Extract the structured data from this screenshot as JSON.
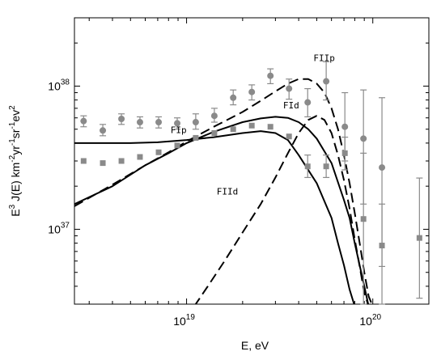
{
  "chart_data": {
    "type": "scatter",
    "x_scale": "log",
    "y_scale": "log",
    "xlim": [
      2.5e+18,
      2e+20
    ],
    "ylim": [
      3e+36,
      3e+38
    ],
    "xlabel": "E, eV",
    "ylabel": {
      "prefix": "E",
      "prefix_sup": "3",
      "body": " J(E) km",
      "km_sup": "-2",
      "yr": "yr",
      "yr_sup": "-1",
      "sr": "sr",
      "sr_sup": "-1",
      "ev": "ev",
      "ev_sup": "2"
    },
    "x_ticks": [
      {
        "value": 1e+19,
        "base": "10",
        "exp": "19"
      },
      {
        "value": 1e+20,
        "base": "10",
        "exp": "20"
      }
    ],
    "y_ticks": [
      {
        "value": 1e+37,
        "base": "10",
        "exp": "37"
      },
      {
        "value": 1e+38,
        "base": "10",
        "exp": "38"
      }
    ],
    "grid": false,
    "series": [
      {
        "marker": "circle",
        "color": "#8a8a8a",
        "points": [
          {
            "x": 2.8e+18,
            "y": 5.7e+37,
            "lo": 5.2e+37,
            "hi": 6.2e+37
          },
          {
            "x": 3.55e+18,
            "y": 4.9e+37,
            "lo": 4.5e+37,
            "hi": 5.4e+37
          },
          {
            "x": 4.47e+18,
            "y": 5.9e+37,
            "lo": 5.4e+37,
            "hi": 6.4e+37
          },
          {
            "x": 5.62e+18,
            "y": 5.6e+37,
            "lo": 5.1e+37,
            "hi": 6.1e+37
          },
          {
            "x": 7.08e+18,
            "y": 5.6e+37,
            "lo": 5.1e+37,
            "hi": 6.1e+37
          },
          {
            "x": 8.91e+18,
            "y": 5.5e+37,
            "lo": 5e+37,
            "hi": 6e+37
          },
          {
            "x": 1.12e+19,
            "y": 5.6e+37,
            "lo": 5e+37,
            "hi": 6.4e+37
          },
          {
            "x": 1.41e+19,
            "y": 6.2e+37,
            "lo": 5.6e+37,
            "hi": 7e+37
          },
          {
            "x": 1.78e+19,
            "y": 8.3e+37,
            "lo": 7.4e+37,
            "hi": 9.4e+37
          },
          {
            "x": 2.24e+19,
            "y": 9.1e+37,
            "lo": 8e+37,
            "hi": 1.02e+38
          },
          {
            "x": 2.82e+19,
            "y": 1.18e+38,
            "lo": 1.04e+38,
            "hi": 1.32e+38
          },
          {
            "x": 3.55e+19,
            "y": 9.6e+37,
            "lo": 8.1e+37,
            "hi": 1.12e+38
          },
          {
            "x": 4.47e+19,
            "y": 7.7e+37,
            "lo": 6.1e+37,
            "hi": 9.6e+37
          },
          {
            "x": 5.62e+19,
            "y": 1.08e+38,
            "lo": 8e+37,
            "hi": 1.48e+38
          },
          {
            "x": 7.08e+19,
            "y": 5.2e+37,
            "lo": 3e+37,
            "hi": 9e+37
          },
          {
            "x": 8.91e+19,
            "y": 4.3e+37,
            "lo": 1.5e+37,
            "hi": 9.4e+37
          },
          {
            "x": 1.12e+20,
            "y": 2.7e+37,
            "lo": 5.5e+36,
            "hi": 8.3e+37
          }
        ]
      },
      {
        "marker": "square",
        "color": "#8a8a8a",
        "points": [
          {
            "x": 2.8e+18,
            "y": 3e+37
          },
          {
            "x": 3.55e+18,
            "y": 2.9e+37
          },
          {
            "x": 4.47e+18,
            "y": 3e+37
          },
          {
            "x": 5.62e+18,
            "y": 3.2e+37
          },
          {
            "x": 7.08e+18,
            "y": 3.45e+37
          },
          {
            "x": 8.91e+18,
            "y": 3.85e+37
          },
          {
            "x": 1.12e+19,
            "y": 4.35e+37
          },
          {
            "x": 1.41e+19,
            "y": 4.7e+37
          },
          {
            "x": 1.78e+19,
            "y": 5e+37
          },
          {
            "x": 2.24e+19,
            "y": 5.3e+37
          },
          {
            "x": 2.82e+19,
            "y": 5.2e+37
          },
          {
            "x": 3.55e+19,
            "y": 4.45e+37
          },
          {
            "x": 4.47e+19,
            "y": 2.75e+37,
            "lo": 2.3e+37,
            "hi": 3.3e+37
          },
          {
            "x": 5.62e+19,
            "y": 2.75e+37,
            "lo": 2.3e+37,
            "hi": 3.3e+37
          },
          {
            "x": 7.08e+19,
            "y": 3.4e+37,
            "lo": 2.6e+37,
            "hi": 4.4e+37
          },
          {
            "x": 8.91e+19,
            "y": 1.18e+37,
            "lo": 3e+36,
            "hi": 3.4e+37
          },
          {
            "x": 1.12e+20,
            "y": 7.7e+36,
            "lo": 3e+36,
            "hi": 1.5e+37
          },
          {
            "x": 1.78e+20,
            "y": 8.7e+36,
            "lo": 3.3e+36,
            "hi": 2.28e+37
          }
        ]
      },
      {
        "name": "FIp",
        "line": "solid",
        "points": [
          [
            2.5e+18,
            4e+37
          ],
          [
            3.5e+18,
            4e+37
          ],
          [
            5e+18,
            4e+37
          ],
          [
            7e+18,
            4.05e+37
          ],
          [
            1e+19,
            4.2e+37
          ],
          [
            1.4e+19,
            4.4e+37
          ],
          [
            2e+19,
            4.7e+37
          ],
          [
            2.5e+19,
            4.85e+37
          ],
          [
            3e+19,
            4.7e+37
          ],
          [
            3.5e+19,
            4.2e+37
          ],
          [
            4e+19,
            3.3e+37
          ],
          [
            5e+19,
            2.1e+37
          ],
          [
            6e+19,
            1.2e+37
          ],
          [
            6.5e+19,
            8e+36
          ],
          [
            7e+19,
            5.6e+36
          ],
          [
            7.5e+19,
            3.8e+36
          ],
          [
            8e+19,
            2.9e+36
          ]
        ]
      },
      {
        "name": "FId",
        "line": "solid",
        "points": [
          [
            2.5e+18,
            1.5e+37
          ],
          [
            4e+18,
            2e+37
          ],
          [
            6e+18,
            2.8e+37
          ],
          [
            8e+18,
            3.4e+37
          ],
          [
            1e+19,
            4e+37
          ],
          [
            1.4e+19,
            4.8e+37
          ],
          [
            2e+19,
            5.6e+37
          ],
          [
            2.5e+19,
            5.95e+37
          ],
          [
            3e+19,
            6.1e+37
          ],
          [
            3.5e+19,
            6e+37
          ],
          [
            4e+19,
            5.6e+37
          ],
          [
            4.5e+19,
            5e+37
          ],
          [
            5e+19,
            4.3e+37
          ],
          [
            6e+19,
            2.9e+37
          ],
          [
            7e+19,
            1.6e+37
          ],
          [
            7.5e+19,
            1.2e+37
          ],
          [
            8e+19,
            8e+36
          ],
          [
            9e+19,
            4e+36
          ],
          [
            9.5e+19,
            2.9e+36
          ]
        ]
      },
      {
        "name": "FIIp",
        "line": "dashed",
        "points": [
          [
            2.5e+18,
            1.45e+37
          ],
          [
            4e+18,
            2.05e+37
          ],
          [
            6e+18,
            2.8e+37
          ],
          [
            8e+18,
            3.45e+37
          ],
          [
            1e+19,
            4.1e+37
          ],
          [
            1.4e+19,
            5.2e+37
          ],
          [
            2e+19,
            6.6e+37
          ],
          [
            2.5e+19,
            7.9e+37
          ],
          [
            3e+19,
            9.2e+37
          ],
          [
            3.5e+19,
            1.04e+38
          ],
          [
            4e+19,
            1.12e+38
          ],
          [
            4.5e+19,
            1.12e+38
          ],
          [
            5e+19,
            1.04e+38
          ],
          [
            5.5e+19,
            9e+37
          ],
          [
            6e+19,
            7e+37
          ],
          [
            6.5e+19,
            5e+37
          ],
          [
            7e+19,
            3.3e+37
          ],
          [
            7.5e+19,
            2.1e+37
          ],
          [
            8e+19,
            1.3e+37
          ],
          [
            8.5e+19,
            8e+36
          ],
          [
            9e+19,
            5e+36
          ],
          [
            9.5e+19,
            3.4e+36
          ],
          [
            1e+20,
            2.9e+36
          ]
        ]
      },
      {
        "name": "FIId",
        "line": "dashed",
        "points": [
          [
            1.1e+19,
            2.9e+36
          ],
          [
            1.3e+19,
            4e+36
          ],
          [
            1.6e+19,
            6e+36
          ],
          [
            2e+19,
            9.5e+36
          ],
          [
            2.5e+19,
            1.5e+37
          ],
          [
            3e+19,
            2.3e+37
          ],
          [
            3.5e+19,
            3.4e+37
          ],
          [
            4e+19,
            4.7e+37
          ],
          [
            4.5e+19,
            5.8e+37
          ],
          [
            5e+19,
            6.2e+37
          ],
          [
            5.5e+19,
            5.8e+37
          ],
          [
            6e+19,
            4.7e+37
          ],
          [
            6.5e+19,
            3.3e+37
          ],
          [
            7e+19,
            2.2e+37
          ],
          [
            7.5e+19,
            1.4e+37
          ],
          [
            8e+19,
            8.5e+36
          ],
          [
            8.5e+19,
            5.5e+36
          ],
          [
            9e+19,
            3.6e+36
          ],
          [
            9.5e+19,
            2.9e+36
          ]
        ]
      }
    ],
    "annotations": [
      {
        "text": "FIIp",
        "x": 4.8e+19,
        "y": 1.5e+38
      },
      {
        "text": "FId",
        "x": 3.3e+19,
        "y": 7e+37
      },
      {
        "text": "FIp",
        "x": 8.2e+18,
        "y": 4.7e+37
      },
      {
        "text": "FIId",
        "x": 1.45e+19,
        "y": 1.75e+37
      }
    ]
  }
}
